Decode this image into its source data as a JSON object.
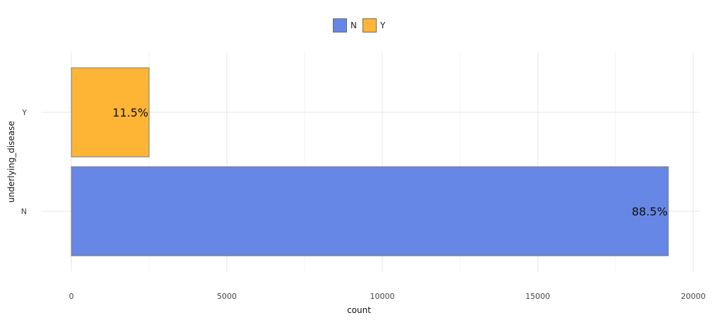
{
  "chart_data": {
    "type": "bar",
    "orientation": "horizontal",
    "stacked": false,
    "title": "",
    "xlabel": "count",
    "ylabel": "underlying_disease",
    "xlim": [
      0,
      20000
    ],
    "x_ticks": [
      "0",
      "5000",
      "10000",
      "15000",
      "20000"
    ],
    "categories": [
      "Y",
      "N"
    ],
    "values": [
      2500,
      19200
    ],
    "data_labels": [
      "11.5%",
      "88.5%"
    ],
    "colors": {
      "N": "#6687e5",
      "Y": "#feb535"
    },
    "legend": {
      "placement": "top-center",
      "entries": [
        "N",
        "Y"
      ]
    },
    "grid": true
  }
}
